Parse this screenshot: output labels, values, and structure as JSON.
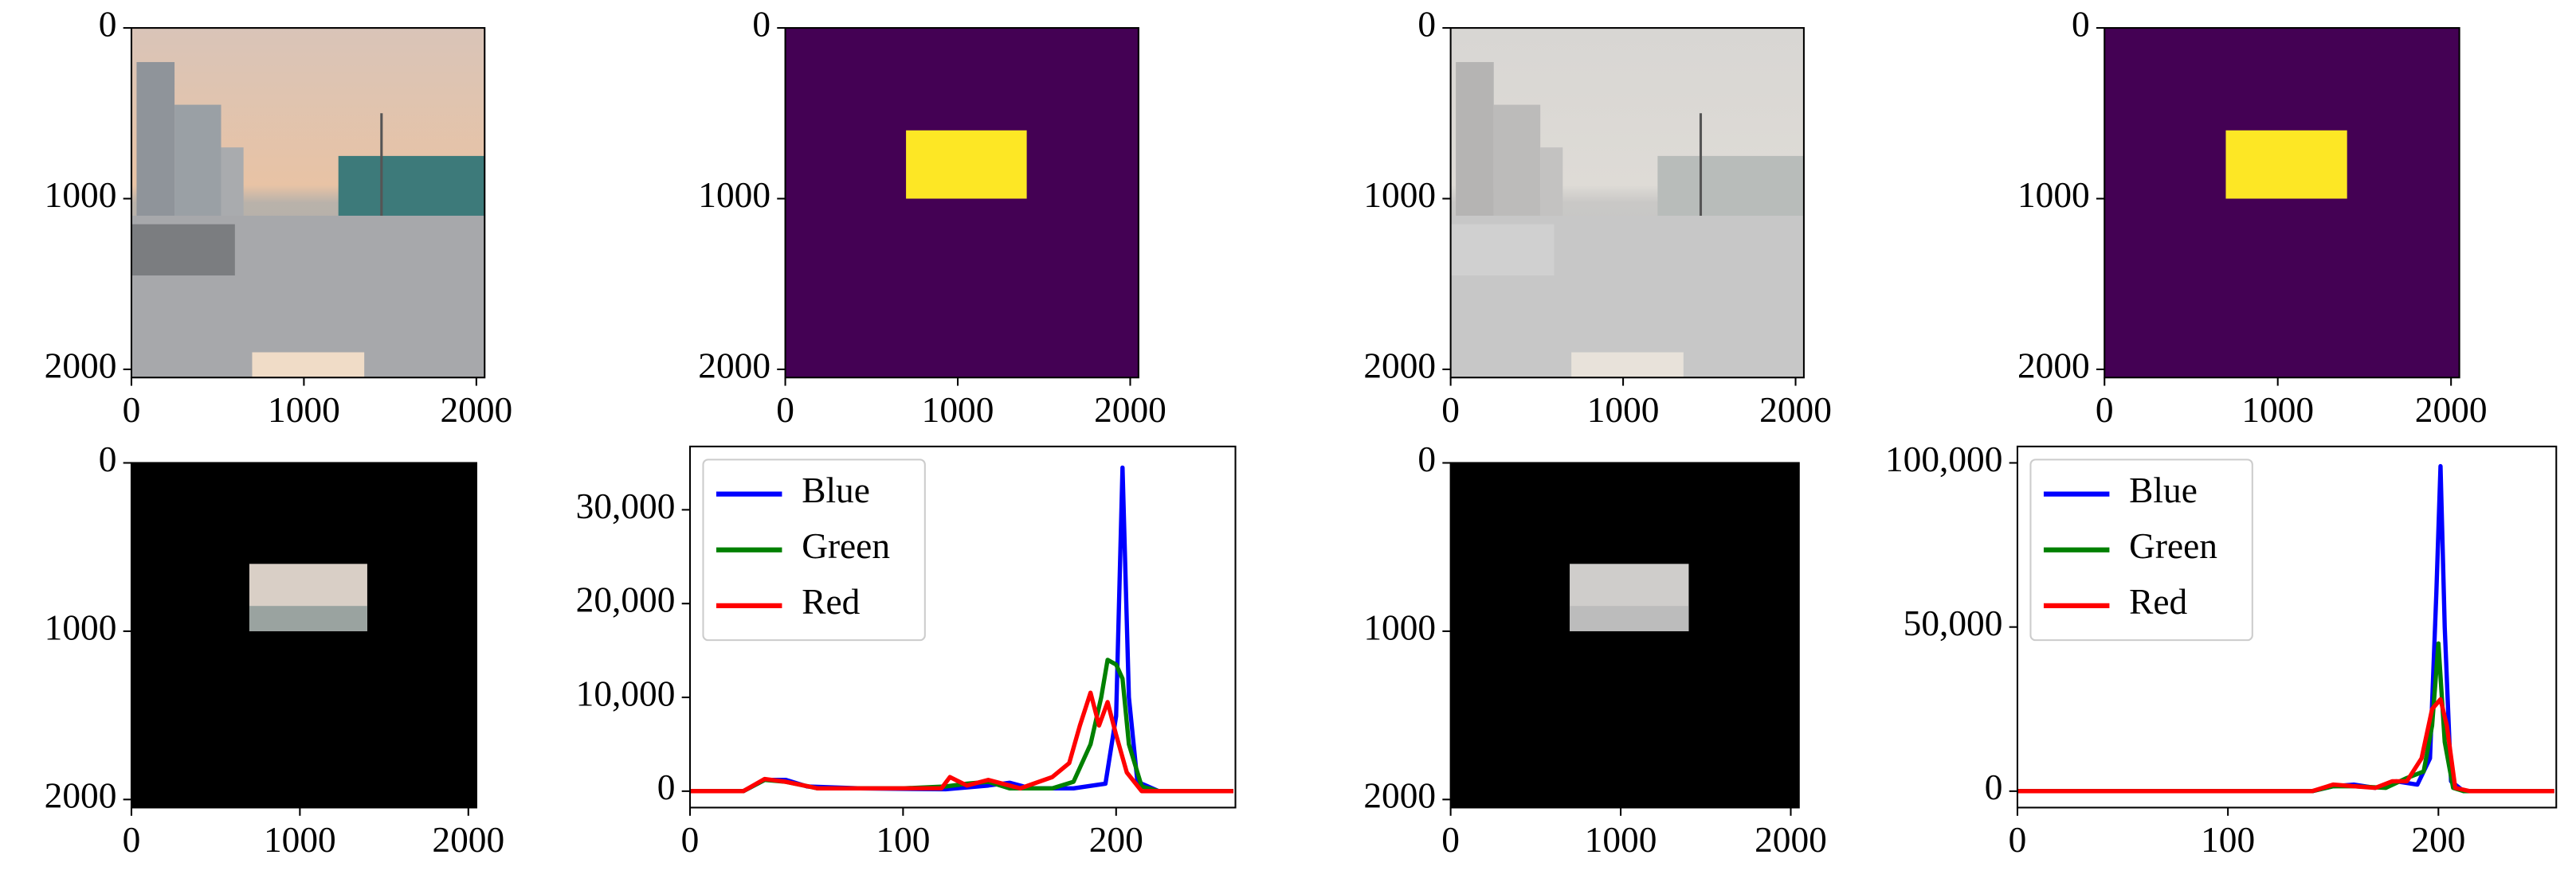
{
  "chart_data": [
    {
      "type": "image",
      "xlim": [
        0,
        2048
      ],
      "ylim": [
        2048,
        0
      ],
      "xticks": [
        0,
        1000,
        2000
      ],
      "yticks": [
        0,
        1000,
        2000
      ]
    },
    {
      "type": "image",
      "xlim": [
        0,
        2048
      ],
      "ylim": [
        2048,
        0
      ],
      "xticks": [
        0,
        1000,
        2000
      ],
      "yticks": [
        0,
        1000,
        2000
      ]
    },
    {
      "type": "image",
      "xlim": [
        0,
        2048
      ],
      "ylim": [
        2048,
        0
      ],
      "xticks": [
        0,
        1000,
        2000
      ],
      "yticks": [
        0,
        1000,
        2000
      ]
    },
    {
      "type": "image",
      "xlim": [
        0,
        2048
      ],
      "ylim": [
        2048,
        0
      ],
      "xticks": [
        0,
        1000,
        2000
      ],
      "yticks": [
        0,
        1000,
        2000
      ]
    },
    {
      "type": "image",
      "xlim": [
        0,
        2048
      ],
      "ylim": [
        2048,
        0
      ],
      "xticks": [
        0,
        1000,
        2000
      ],
      "yticks": [
        0,
        1000,
        2000
      ]
    },
    {
      "type": "line",
      "xlim": [
        0,
        256
      ],
      "ylim": [
        -1750,
        36750
      ],
      "xticks": [
        0,
        100,
        200
      ],
      "yticks": [
        0,
        {
          "value": 10000,
          "label": "10,000"
        },
        {
          "value": 20000,
          "label": "20,000"
        },
        {
          "value": 30000,
          "label": "30,000"
        }
      ],
      "legend": "upper left",
      "series": [
        {
          "name": "Blue",
          "color": "#0000ff",
          "x": [
            0,
            25,
            35,
            45,
            55,
            80,
            120,
            140,
            150,
            160,
            180,
            195,
            200,
            203,
            206,
            210,
            220,
            255
          ],
          "values": [
            0,
            0,
            1200,
            1200,
            500,
            300,
            200,
            600,
            900,
            300,
            300,
            800,
            8000,
            34500,
            10000,
            1000,
            0,
            0
          ]
        },
        {
          "name": "Green",
          "color": "#008000",
          "x": [
            0,
            25,
            35,
            45,
            60,
            100,
            120,
            130,
            140,
            150,
            170,
            180,
            188,
            193,
            196,
            200,
            203,
            206,
            212,
            220,
            255
          ],
          "values": [
            0,
            0,
            1200,
            1000,
            300,
            300,
            500,
            800,
            1000,
            300,
            300,
            1000,
            5000,
            10000,
            14000,
            13500,
            12000,
            5000,
            500,
            0,
            0
          ]
        },
        {
          "name": "Red",
          "color": "#ff0000",
          "x": [
            0,
            25,
            35,
            45,
            60,
            100,
            118,
            122,
            130,
            140,
            155,
            170,
            178,
            183,
            188,
            192,
            196,
            200,
            205,
            212,
            255
          ],
          "values": [
            0,
            0,
            1300,
            1000,
            300,
            300,
            300,
            1500,
            600,
            1200,
            300,
            1500,
            3000,
            7000,
            10500,
            7000,
            9500,
            6000,
            2000,
            0,
            0
          ]
        }
      ]
    },
    {
      "type": "image",
      "xlim": [
        0,
        2048
      ],
      "ylim": [
        2048,
        0
      ],
      "xticks": [
        0,
        1000,
        2000
      ],
      "yticks": [
        0,
        1000,
        2000
      ]
    },
    {
      "type": "line",
      "xlim": [
        0,
        256
      ],
      "ylim": [
        -5000,
        105000
      ],
      "xticks": [
        0,
        100,
        200
      ],
      "yticks": [
        0,
        {
          "value": 50000,
          "label": "50,000"
        },
        {
          "value": 100000,
          "label": "100,000"
        }
      ],
      "legend": "upper left",
      "series": [
        {
          "name": "Blue",
          "color": "#0000ff",
          "x": [
            0,
            140,
            150,
            160,
            170,
            180,
            190,
            196,
            199,
            201,
            203,
            206,
            212,
            255
          ],
          "values": [
            0,
            0,
            1500,
            2000,
            1000,
            3000,
            2000,
            10000,
            60000,
            99000,
            50000,
            3000,
            0,
            0
          ]
        },
        {
          "name": "Green",
          "color": "#008000",
          "x": [
            0,
            140,
            150,
            160,
            175,
            185,
            193,
            197,
            200,
            203,
            207,
            212,
            255
          ],
          "values": [
            0,
            0,
            1500,
            1500,
            1000,
            4000,
            6000,
            20000,
            45000,
            15000,
            1000,
            0,
            0
          ]
        },
        {
          "name": "Red",
          "color": "#ff0000",
          "x": [
            0,
            140,
            150,
            160,
            170,
            178,
            185,
            192,
            197,
            201,
            204,
            208,
            215,
            255
          ],
          "values": [
            0,
            0,
            2000,
            1500,
            1000,
            3000,
            3000,
            10000,
            25000,
            28000,
            20000,
            1000,
            0,
            0
          ]
        }
      ]
    }
  ]
}
